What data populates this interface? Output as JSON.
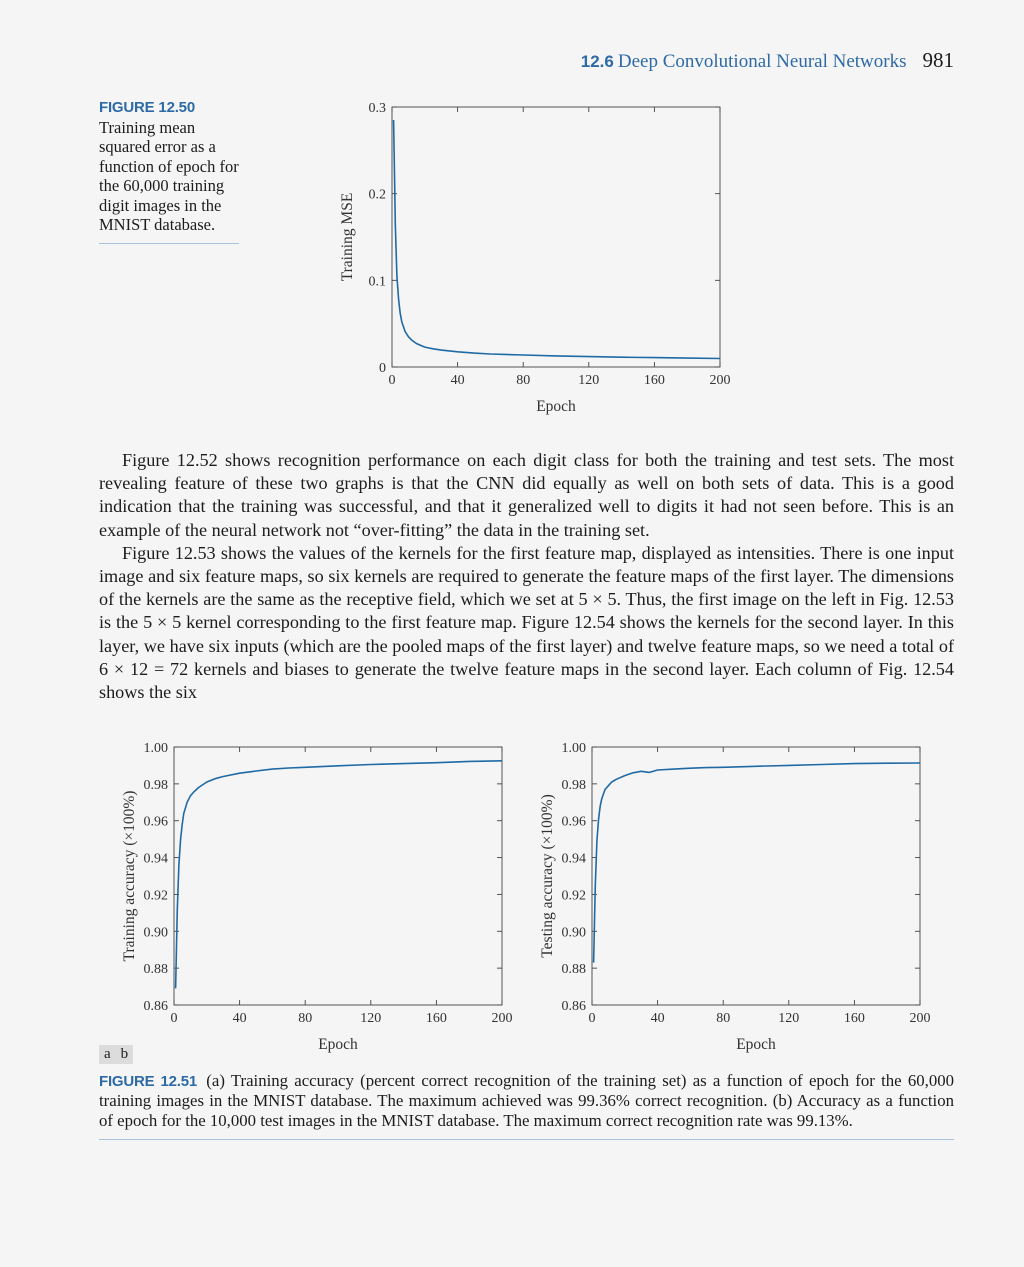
{
  "header": {
    "section_number": "12.6",
    "section_title": "Deep Convolutional Neural Networks",
    "page_number": "981"
  },
  "figure_12_50": {
    "label": "FIGURE 12.50",
    "caption": "Training mean squared error as a function of epoch for the 60,000 training digit images in the MNIST database."
  },
  "body": {
    "paragraphs": [
      "Figure 12.52 shows recognition performance on each digit class for both the training and test sets. The most revealing feature of these two graphs is that the CNN did equally as well on both sets of data. This is a good indication that the training was successful, and that it generalized well to digits it had not seen before. This is an example of the neural network not “over-fitting” the data in the training set.",
      "Figure 12.53 shows the values of the kernels for the first feature map, displayed as intensities. There is one input image and six feature maps, so six kernels are required to generate the feature maps of the first layer. The dimensions of the kernels are the same as the receptive field, which we set at 5 × 5. Thus, the first image on the left in Fig. 12.53 is the 5 × 5 kernel corresponding to the first feature map. Figure 12.54 shows the kernels for the second layer. In this layer, we have six inputs (which are the pooled maps of the first layer) and twelve feature maps, so we need a total of 6 × 12 = 72 kernels and biases to generate the twelve feature maps in the second layer. Each column of Fig. 12.54 shows the six"
    ]
  },
  "panel_tags": [
    "a",
    "b"
  ],
  "figure_12_51": {
    "label": "FIGURE 12.51",
    "caption": "(a) Training accuracy (percent correct recognition of the training set) as a function of epoch for the 60,000 training images in the MNIST database. The maximum achieved was 99.36% correct recognition. (b) Accuracy as a function of epoch for the 10,000 test images in the MNIST database. The maximum correct recognition rate was 99.13%."
  },
  "chart_data": [
    {
      "type": "line",
      "xlabel": "Epoch",
      "ylabel": "Training MSE",
      "xlim": [
        0,
        200
      ],
      "ylim": [
        0,
        0.3
      ],
      "xticks": [
        0,
        40,
        80,
        120,
        160,
        200
      ],
      "yticks": [
        0,
        0.1,
        0.2,
        0.3
      ],
      "ytick_labels": [
        "0",
        "0.1",
        "0.2",
        "0.3"
      ],
      "color": "#1f6aa5",
      "x": [
        1,
        2,
        3,
        4,
        5,
        6,
        8,
        10,
        12,
        15,
        20,
        25,
        30,
        40,
        50,
        60,
        80,
        100,
        120,
        140,
        160,
        180,
        200
      ],
      "y": [
        0.285,
        0.165,
        0.105,
        0.078,
        0.062,
        0.052,
        0.041,
        0.035,
        0.031,
        0.027,
        0.023,
        0.021,
        0.0195,
        0.0175,
        0.016,
        0.015,
        0.0138,
        0.0128,
        0.012,
        0.0113,
        0.0108,
        0.0103,
        0.0098
      ]
    },
    {
      "type": "line",
      "xlabel": "Epoch",
      "ylabel": "Training accuracy (×100%)",
      "xlim": [
        0,
        200
      ],
      "ylim": [
        0.86,
        1.0
      ],
      "xticks": [
        0,
        40,
        80,
        120,
        160,
        200
      ],
      "yticks": [
        0.86,
        0.88,
        0.9,
        0.92,
        0.94,
        0.96,
        0.98,
        1.0
      ],
      "ytick_labels": [
        "0.86",
        "0.88",
        "0.90",
        "0.92",
        "0.94",
        "0.96",
        "0.98",
        "1.00"
      ],
      "color": "#1f6aa5",
      "x": [
        1,
        2,
        3,
        4,
        5,
        6,
        8,
        10,
        12,
        15,
        20,
        25,
        30,
        40,
        50,
        60,
        70,
        80,
        100,
        120,
        140,
        160,
        180,
        200
      ],
      "y": [
        0.869,
        0.912,
        0.936,
        0.95,
        0.958,
        0.964,
        0.97,
        0.9735,
        0.9755,
        0.978,
        0.981,
        0.9828,
        0.984,
        0.9858,
        0.987,
        0.988,
        0.9886,
        0.989,
        0.9898,
        0.9905,
        0.991,
        0.9915,
        0.9922,
        0.9925
      ]
    },
    {
      "type": "line",
      "xlabel": "Epoch",
      "ylabel": "Testing accuracy (×100%)",
      "xlim": [
        0,
        200
      ],
      "ylim": [
        0.86,
        1.0
      ],
      "xticks": [
        0,
        40,
        80,
        120,
        160,
        200
      ],
      "yticks": [
        0.86,
        0.88,
        0.9,
        0.92,
        0.94,
        0.96,
        0.98,
        1.0
      ],
      "ytick_labels": [
        "0.86",
        "0.88",
        "0.90",
        "0.92",
        "0.94",
        "0.96",
        "0.98",
        "1.00"
      ],
      "color": "#1f6aa5",
      "x": [
        1,
        2,
        3,
        4,
        5,
        6,
        8,
        10,
        12,
        15,
        20,
        25,
        30,
        35,
        40,
        50,
        60,
        70,
        80,
        100,
        120,
        140,
        160,
        180,
        200
      ],
      "y": [
        0.883,
        0.925,
        0.949,
        0.961,
        0.968,
        0.972,
        0.977,
        0.979,
        0.981,
        0.9825,
        0.9845,
        0.986,
        0.9868,
        0.9862,
        0.9875,
        0.988,
        0.9885,
        0.9888,
        0.989,
        0.9895,
        0.99,
        0.9905,
        0.991,
        0.9912,
        0.9913
      ]
    }
  ]
}
